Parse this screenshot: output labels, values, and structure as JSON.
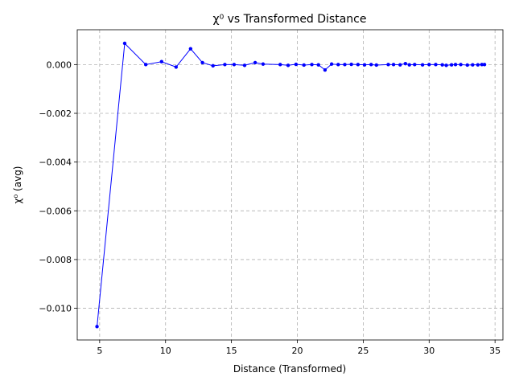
{
  "chart_data": {
    "type": "line",
    "title": "χ⁰ vs Transformed Distance",
    "xlabel": "Distance (Transformed)",
    "ylabel": "χ⁰ (avg)",
    "xlim": [
      3.3,
      35.6
    ],
    "ylim": [
      -0.0113,
      0.00143
    ],
    "xticks": [
      5,
      10,
      15,
      20,
      25,
      30,
      35
    ],
    "xtick_labels": [
      "5",
      "10",
      "15",
      "20",
      "25",
      "30",
      "35"
    ],
    "yticks": [
      -0.01,
      -0.008,
      -0.006,
      -0.004,
      -0.002,
      0.0
    ],
    "ytick_labels": [
      "−0.010",
      "−0.008",
      "−0.006",
      "−0.004",
      "−0.002",
      "0.000"
    ],
    "grid": true,
    "series": [
      {
        "color": "#0000ff",
        "x": [
          4.8,
          6.9,
          8.5,
          9.7,
          10.8,
          11.9,
          12.8,
          13.6,
          14.5,
          15.2,
          16.0,
          16.8,
          17.4,
          18.7,
          19.3,
          19.9,
          20.5,
          21.1,
          21.6,
          22.1,
          22.6,
          23.1,
          23.6,
          24.1,
          24.6,
          25.1,
          25.6,
          26.0,
          26.9,
          27.3,
          27.8,
          28.2,
          28.5,
          28.9,
          29.5,
          30.0,
          30.5,
          31.0,
          31.3,
          31.7,
          32.0,
          32.4,
          32.9,
          33.3,
          33.7,
          34.0,
          34.2
        ],
        "y": [
          -0.01075,
          0.00087,
          0.0,
          0.00012,
          -0.0001,
          0.00065,
          8e-05,
          -5e-05,
          0.0,
          0.0,
          -3e-05,
          8e-05,
          2e-05,
          0.0,
          -3e-05,
          1e-05,
          -2e-05,
          0.0,
          -1e-05,
          -0.00022,
          2e-05,
          0.0,
          0.0,
          1e-05,
          0.0,
          -1e-05,
          0.0,
          -2e-05,
          0.0,
          0.0,
          -1e-05,
          4e-05,
          -1e-05,
          0.0,
          -1e-05,
          0.0,
          0.0,
          -1e-05,
          -3e-05,
          -1e-05,
          0.0,
          0.0,
          -2e-05,
          -1e-05,
          -1e-05,
          0.0,
          0.0
        ]
      }
    ]
  }
}
